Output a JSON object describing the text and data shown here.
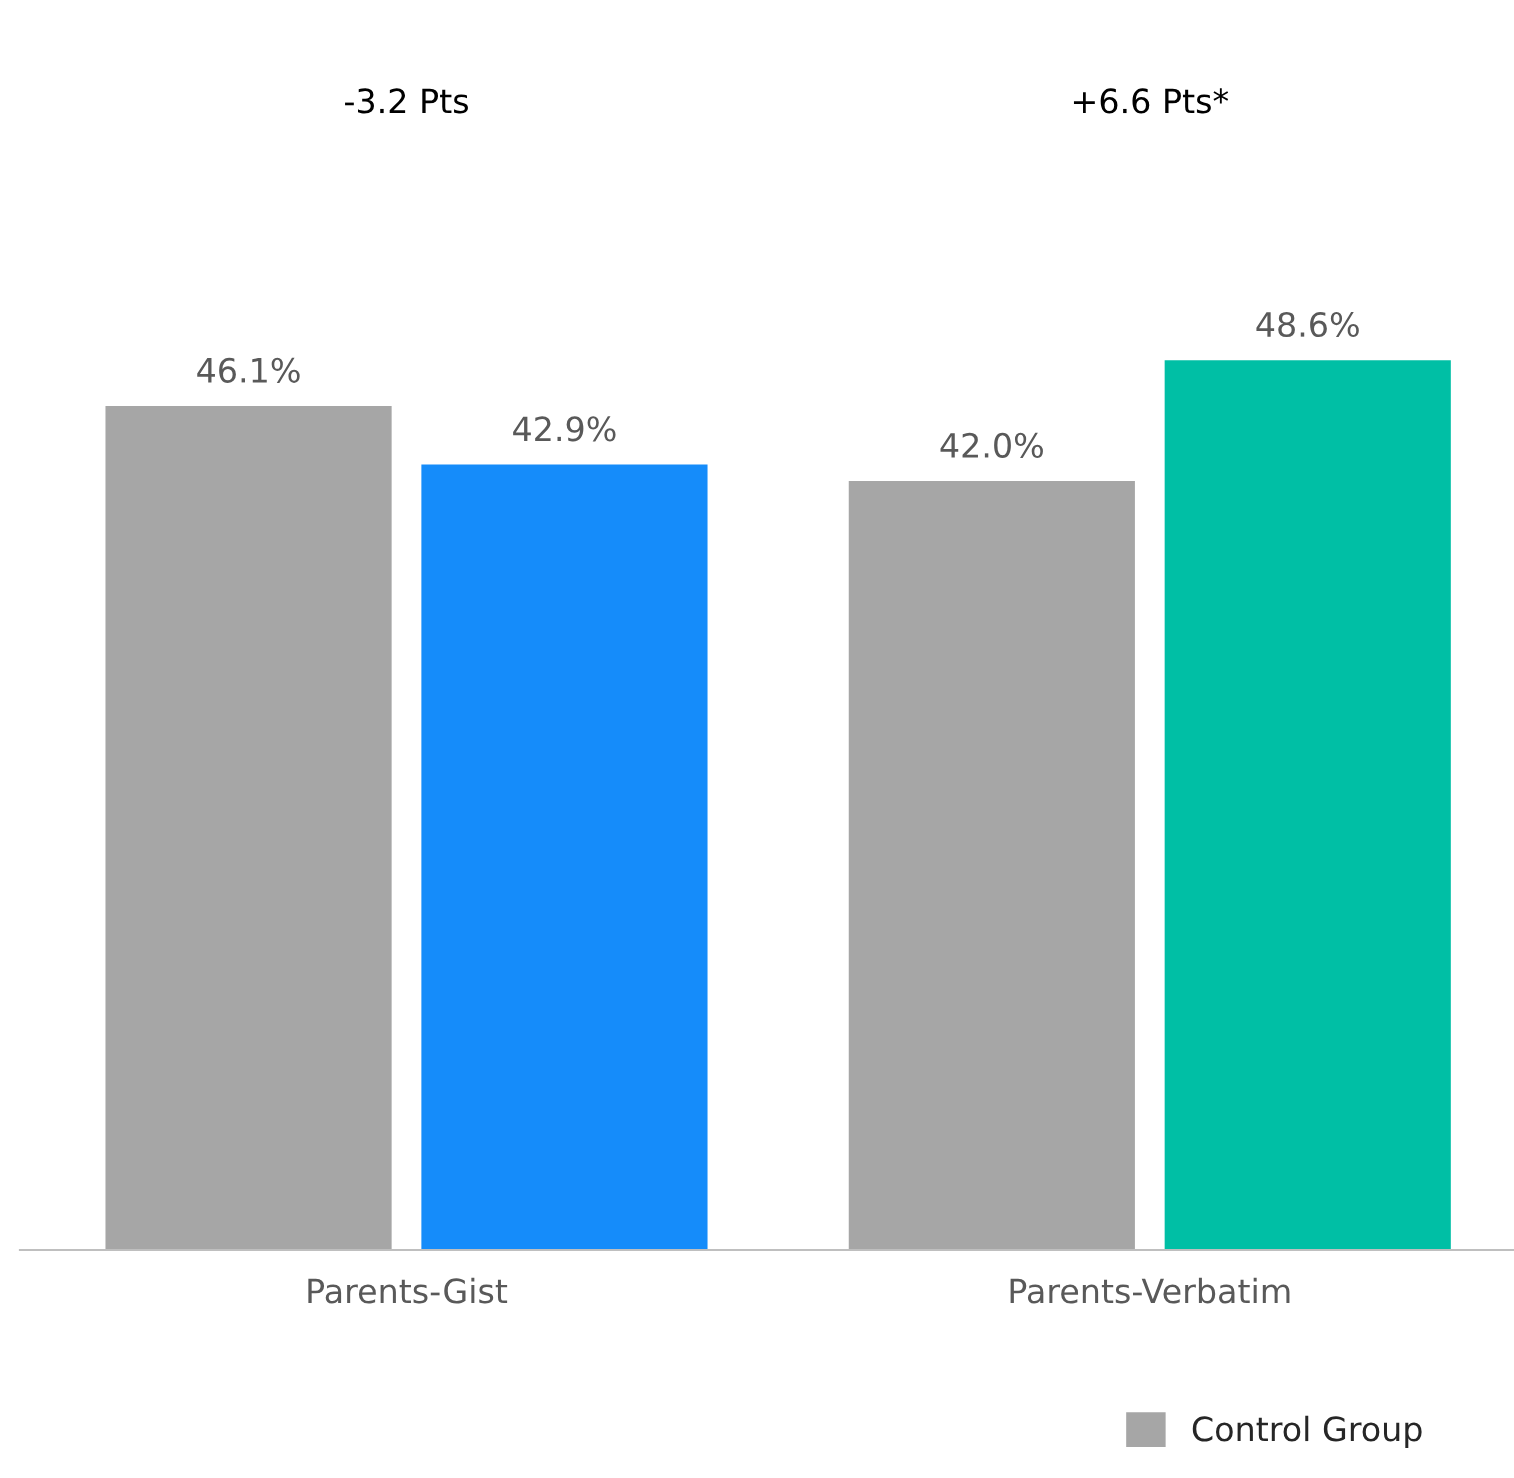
{
  "chart_data": {
    "type": "bar",
    "categories": [
      "Parents-Gist",
      "Parents-Verbatim"
    ],
    "series": [
      {
        "name": "Control Group",
        "color": "#a6a6a6",
        "values": [
          46.1,
          42.0
        ],
        "value_labels": [
          "46.1%",
          "42.0%"
        ]
      },
      {
        "colors": [
          "#158cfa",
          "#00bfa5"
        ],
        "values": [
          42.9,
          48.6
        ],
        "value_labels": [
          "42.9%",
          "48.6%"
        ]
      }
    ],
    "annotations": [
      "-3.2 Pts",
      "+6.6 Pts*"
    ],
    "tick_labels": "x",
    "grid": false,
    "legend": "bottom right"
  }
}
